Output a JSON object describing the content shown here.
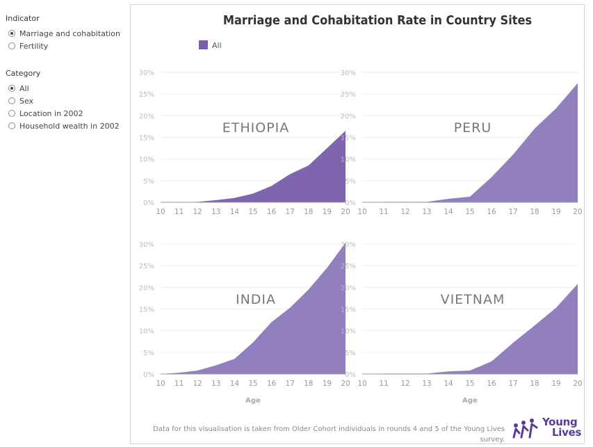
{
  "sidebar": {
    "indicator": {
      "title": "Indicator",
      "options": [
        {
          "label": "Marriage and cohabitation",
          "checked": true
        },
        {
          "label": "Fertility",
          "checked": false
        }
      ]
    },
    "category": {
      "title": "Category",
      "options": [
        {
          "label": "All",
          "checked": true
        },
        {
          "label": "Sex",
          "checked": false
        },
        {
          "label": "Location in 2002",
          "checked": false
        },
        {
          "label": "Household wealth in 2002",
          "checked": false
        }
      ]
    }
  },
  "footer": {
    "note": "Data for this visualisation is taken from Older Cohort individuals in rounds 4 and 5 of the Young Lives survey.",
    "logo_line1": "Young",
    "logo_line2": "Lives"
  },
  "colors": {
    "accent": "#7b5ea7",
    "ethiopia": "#7f65ad",
    "others": "#9180bd",
    "logo": "#5b3a9a"
  },
  "chart_data": {
    "type": "area",
    "title": "Marriage and Cohabitation Rate in Country Sites",
    "legend": {
      "entries": [
        "All"
      ],
      "placement": "top-left"
    },
    "xlabel": "Age",
    "x": [
      10,
      11,
      12,
      13,
      14,
      15,
      16,
      17,
      18,
      19,
      20
    ],
    "y_ticks": [
      "0%",
      "5%",
      "10%",
      "15%",
      "20%",
      "25%",
      "30%"
    ],
    "ylim": [
      0,
      30
    ],
    "grid": true,
    "panels": [
      {
        "country": "ETHIOPIA",
        "values": [
          0,
          0,
          0.1,
          0.5,
          1.0,
          2.0,
          3.8,
          6.5,
          8.5,
          12.5,
          16.5
        ]
      },
      {
        "country": "PERU",
        "values": [
          0,
          0.1,
          0.1,
          0.1,
          0.8,
          1.3,
          5.8,
          11.0,
          17.0,
          21.7,
          27.5
        ]
      },
      {
        "country": "INDIA",
        "values": [
          0,
          0.3,
          0.8,
          2.0,
          3.5,
          7.3,
          12.0,
          15.3,
          19.5,
          24.5,
          30.3
        ]
      },
      {
        "country": "VIETNAM",
        "values": [
          0,
          0.1,
          0.1,
          0.1,
          0.6,
          0.8,
          2.9,
          7.2,
          11.2,
          15.3,
          20.8
        ]
      }
    ]
  }
}
